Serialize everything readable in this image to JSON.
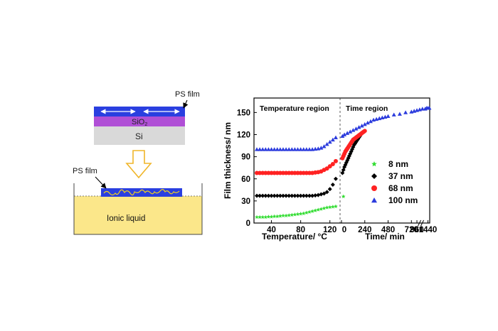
{
  "schematic": {
    "film_label_top": "PS film",
    "layer_oxide_label": "SiO",
    "layer_oxide_subscript": "2",
    "layer_substrate_label": "Si",
    "film_label_bottom": "PS film",
    "bath_label": "Ionic liquid",
    "colors": {
      "ps_film": "#2a3fe0",
      "sio2": "#b04fd6",
      "si": "#d9d9d9",
      "ionic_liquid": "#fbe78a",
      "chain": "#f2d21c",
      "arrow_outline": "#f0b62a"
    }
  },
  "chart_data": {
    "type": "scatter",
    "ylabel": "Film thickness/ nm",
    "ylim": [
      0,
      160
    ],
    "yticks": [
      0,
      30,
      60,
      90,
      120,
      150
    ],
    "region_left_label": "Temperature region",
    "region_right_label": "Time region",
    "temperature_axis": {
      "label": "Temperature/ °C",
      "range": [
        20,
        130
      ],
      "ticks": [
        40,
        80,
        120
      ]
    },
    "time_axis": {
      "label": "Time/ min",
      "tick_labels": [
        "0",
        "240",
        "480",
        "720",
        "960",
        "1440"
      ],
      "range": [
        0,
        1500
      ]
    },
    "legend_position": "right",
    "series": [
      {
        "name": "8 nm",
        "color": "#33dd33",
        "marker": "star",
        "temperature": {
          "T": [
            20,
            24,
            28,
            32,
            36,
            40,
            44,
            48,
            52,
            56,
            60,
            64,
            68,
            72,
            76,
            80,
            84,
            88,
            92,
            96,
            100,
            104,
            108,
            112,
            116,
            120,
            124,
            128
          ],
          "h": [
            8,
            8,
            8,
            8,
            8.5,
            8.5,
            9,
            9,
            9.5,
            10,
            10,
            10.5,
            11,
            11.5,
            12,
            12.5,
            13,
            14,
            15,
            16,
            17,
            18,
            19,
            20,
            21,
            21.5,
            22,
            22.5
          ]
        },
        "time": {
          "t": [
            20
          ],
          "h": [
            36
          ]
        }
      },
      {
        "name": "37 nm",
        "color": "#000000",
        "marker": "diamond",
        "temperature": {
          "T": [
            20,
            24,
            28,
            32,
            36,
            40,
            44,
            48,
            52,
            56,
            60,
            64,
            68,
            72,
            76,
            80,
            84,
            88,
            92,
            96,
            100,
            104,
            108,
            112,
            116,
            120,
            124,
            128
          ],
          "h": [
            37,
            37,
            37,
            37,
            37,
            37,
            37,
            37,
            37,
            37,
            37,
            37,
            37,
            37,
            37,
            37,
            37,
            37,
            37,
            37,
            37.5,
            38,
            39,
            40,
            42,
            46,
            52,
            60
          ]
        },
        "time": {
          "t": [
            10,
            20,
            30,
            40,
            50,
            60,
            70,
            80,
            90,
            100,
            110,
            120,
            130,
            140,
            150,
            160,
            170,
            180,
            190,
            200,
            210
          ],
          "h": [
            68,
            72,
            76,
            79,
            82,
            85,
            88,
            91,
            94,
            97,
            100,
            103,
            106,
            108,
            110,
            112,
            114,
            116,
            118,
            120,
            122
          ]
        }
      },
      {
        "name": "68 nm",
        "color": "#ff2222",
        "marker": "circle",
        "temperature": {
          "T": [
            20,
            24,
            28,
            32,
            36,
            40,
            44,
            48,
            52,
            56,
            60,
            64,
            68,
            72,
            76,
            80,
            84,
            88,
            92,
            96,
            100,
            104,
            108,
            112,
            116,
            120,
            124,
            128
          ],
          "h": [
            68,
            68,
            68,
            68,
            68,
            68,
            68,
            68,
            68,
            68,
            68,
            68,
            68,
            68,
            68,
            68,
            68,
            68,
            68,
            68,
            68.5,
            69,
            70,
            72,
            74,
            77,
            80,
            84
          ]
        },
        "time": {
          "t": [
            10,
            20,
            30,
            40,
            50,
            60,
            70,
            80,
            90,
            100,
            110,
            120,
            130,
            140,
            150,
            160,
            170,
            180,
            190,
            200,
            210,
            220,
            230,
            240
          ],
          "h": [
            88,
            91,
            94,
            97,
            99,
            101,
            103,
            105,
            107,
            109,
            111,
            113,
            114,
            115,
            116,
            117,
            118,
            119,
            120,
            121,
            122,
            123,
            124,
            125
          ]
        }
      },
      {
        "name": "100 nm",
        "color": "#2b3bdd",
        "marker": "triangle",
        "temperature": {
          "T": [
            20,
            24,
            28,
            32,
            36,
            40,
            44,
            48,
            52,
            56,
            60,
            64,
            68,
            72,
            76,
            80,
            84,
            88,
            92,
            96,
            100,
            104,
            108,
            112,
            116,
            120,
            124,
            128
          ],
          "h": [
            100,
            100,
            100,
            100,
            100,
            100,
            100,
            100,
            100,
            100,
            100,
            100,
            100,
            100,
            100,
            100,
            100,
            100,
            100,
            100,
            100.5,
            101,
            102,
            104,
            107,
            110,
            113,
            116
          ]
        },
        "time": {
          "t": [
            10,
            30,
            60,
            90,
            120,
            150,
            180,
            210,
            240,
            270,
            300,
            330,
            360,
            390,
            420,
            450,
            480,
            540,
            600,
            660,
            720,
            840,
            960,
            1080,
            1200,
            1320,
            1380,
            1440,
            1500
          ],
          "h": [
            118,
            120,
            122,
            124,
            126,
            128,
            130,
            132,
            134,
            136,
            138,
            140,
            141,
            142,
            143,
            144,
            145,
            147,
            148,
            150,
            151,
            152,
            153,
            154,
            155,
            155,
            156,
            156,
            156
          ]
        }
      }
    ]
  }
}
